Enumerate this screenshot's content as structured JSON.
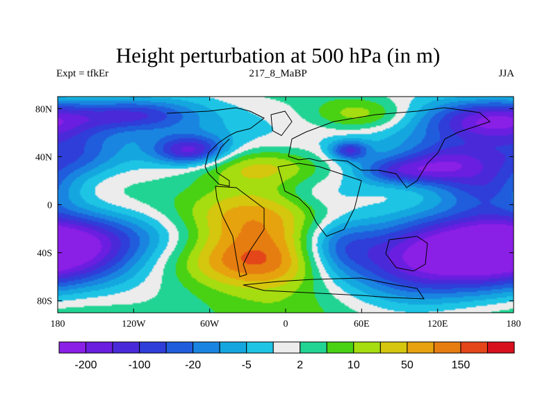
{
  "chart_data": {
    "type": "heatmap",
    "title": "Height perturbation at 500 hPa (in m)",
    "subtitle_left": "Expt = tfkEr",
    "subtitle_center": "217_8_MaBP",
    "subtitle_right": "JJA",
    "x_ticks": [
      "180",
      "120W",
      "60W",
      "0",
      "60E",
      "120E",
      "180"
    ],
    "y_ticks": [
      "80N",
      "40N",
      "0",
      "40S",
      "80S"
    ],
    "xlim": [
      -180,
      180
    ],
    "ylim": [
      -90,
      90
    ],
    "colorbar": {
      "colors": [
        "#8a1fe6",
        "#6a1ee0",
        "#4a2ad8",
        "#2f3ed8",
        "#1f5ddc",
        "#1a85e0",
        "#14a7df",
        "#1ec4e4",
        "#ececec",
        "#22d494",
        "#49d114",
        "#a6dd10",
        "#d5c60e",
        "#e6a30e",
        "#e67d10",
        "#e4461a",
        "#d8101e"
      ],
      "labels": [
        "-200",
        "-100",
        "-20",
        "-5",
        "2",
        "10",
        "50",
        "150"
      ],
      "label_boundaries": [
        1,
        3,
        5,
        7,
        9,
        11,
        13,
        15
      ]
    },
    "field_blobs": [
      {
        "lon": -25,
        "lat": -45,
        "rx": 120,
        "ry": 35,
        "value": 4.5
      },
      {
        "lon": -25,
        "lat": -48,
        "rx": 60,
        "ry": 20,
        "value": 3
      },
      {
        "lon": -170,
        "lat": -42,
        "rx": 60,
        "ry": 28,
        "value": -6
      },
      {
        "lon": 110,
        "lat": -45,
        "rx": 75,
        "ry": 33,
        "value": -7
      },
      {
        "lon": 170,
        "lat": -20,
        "rx": 60,
        "ry": 25,
        "value": -4
      },
      {
        "lon": -170,
        "lat": 40,
        "rx": 40,
        "ry": 18,
        "value": -4
      },
      {
        "lon": -35,
        "lat": -12,
        "rx": 55,
        "ry": 25,
        "value": 3
      },
      {
        "lon": -75,
        "lat": 45,
        "rx": 28,
        "ry": 12,
        "value": -6
      },
      {
        "lon": -25,
        "lat": 32,
        "rx": 50,
        "ry": 15,
        "value": 3
      },
      {
        "lon": 60,
        "lat": 75,
        "rx": 40,
        "ry": 15,
        "value": 4
      },
      {
        "lon": 165,
        "lat": 70,
        "rx": 50,
        "ry": 18,
        "value": -7
      },
      {
        "lon": 90,
        "lat": 28,
        "rx": 35,
        "ry": 12,
        "value": -5
      },
      {
        "lon": 130,
        "lat": 35,
        "rx": 35,
        "ry": 18,
        "value": -5
      },
      {
        "lon": -120,
        "lat": 75,
        "rx": 45,
        "ry": 12,
        "value": -4
      },
      {
        "lon": 160,
        "lat": 15,
        "rx": 40,
        "ry": 20,
        "value": -5
      },
      {
        "lon": 30,
        "lat": 10,
        "rx": 40,
        "ry": 15,
        "value": -2
      },
      {
        "lon": 40,
        "lat": -35,
        "rx": 30,
        "ry": 25,
        "value": -4
      },
      {
        "lon": -110,
        "lat": -25,
        "rx": 60,
        "ry": 20,
        "value": -2
      },
      {
        "lon": 50,
        "lat": 45,
        "rx": 15,
        "ry": 8,
        "value": -5
      }
    ]
  }
}
